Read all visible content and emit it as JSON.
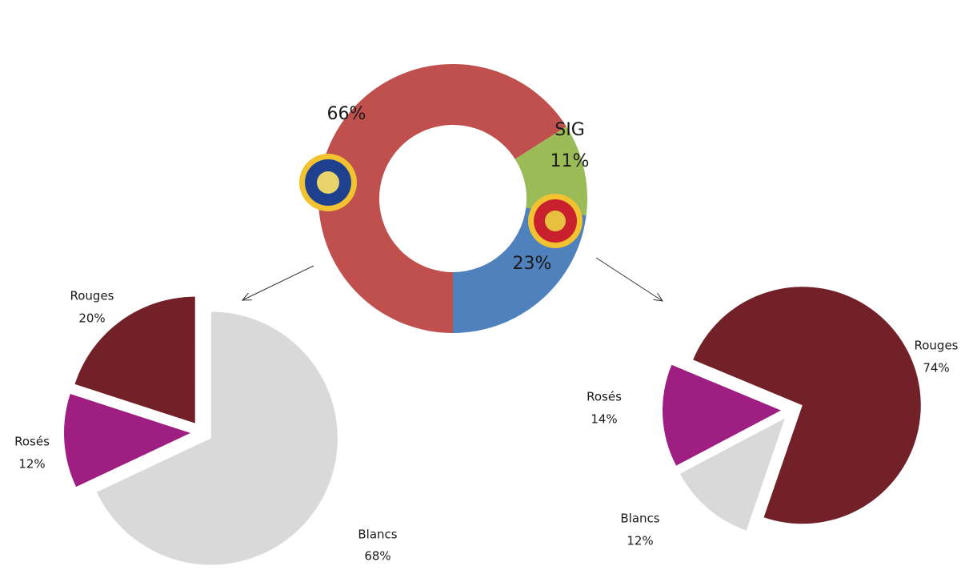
{
  "chart_data": [
    {
      "type": "donut",
      "categories": [
        null,
        "SIG",
        null
      ],
      "values": [
        66,
        11,
        23
      ],
      "value_labels": [
        "66%",
        "11%",
        "23%"
      ],
      "colors": [
        "#c0504d",
        "#9bbb59",
        "#4f81bd"
      ]
    },
    {
      "type": "pie",
      "categories": [
        "Rouges",
        "Rosés",
        "Blancs"
      ],
      "values": [
        20,
        12,
        68
      ],
      "value_labels": [
        "20%",
        "12%",
        "68%"
      ],
      "colors": [
        "#722129",
        "#9e1f81",
        "#d9d9d9"
      ]
    },
    {
      "type": "pie",
      "categories": [
        "Rouges",
        "Rosés",
        "Blancs"
      ],
      "values": [
        74,
        14,
        12
      ],
      "value_labels": [
        "74%",
        "14%",
        "12%"
      ],
      "colors": [
        "#722129",
        "#9e1f81",
        "#d9d9d9"
      ]
    }
  ]
}
